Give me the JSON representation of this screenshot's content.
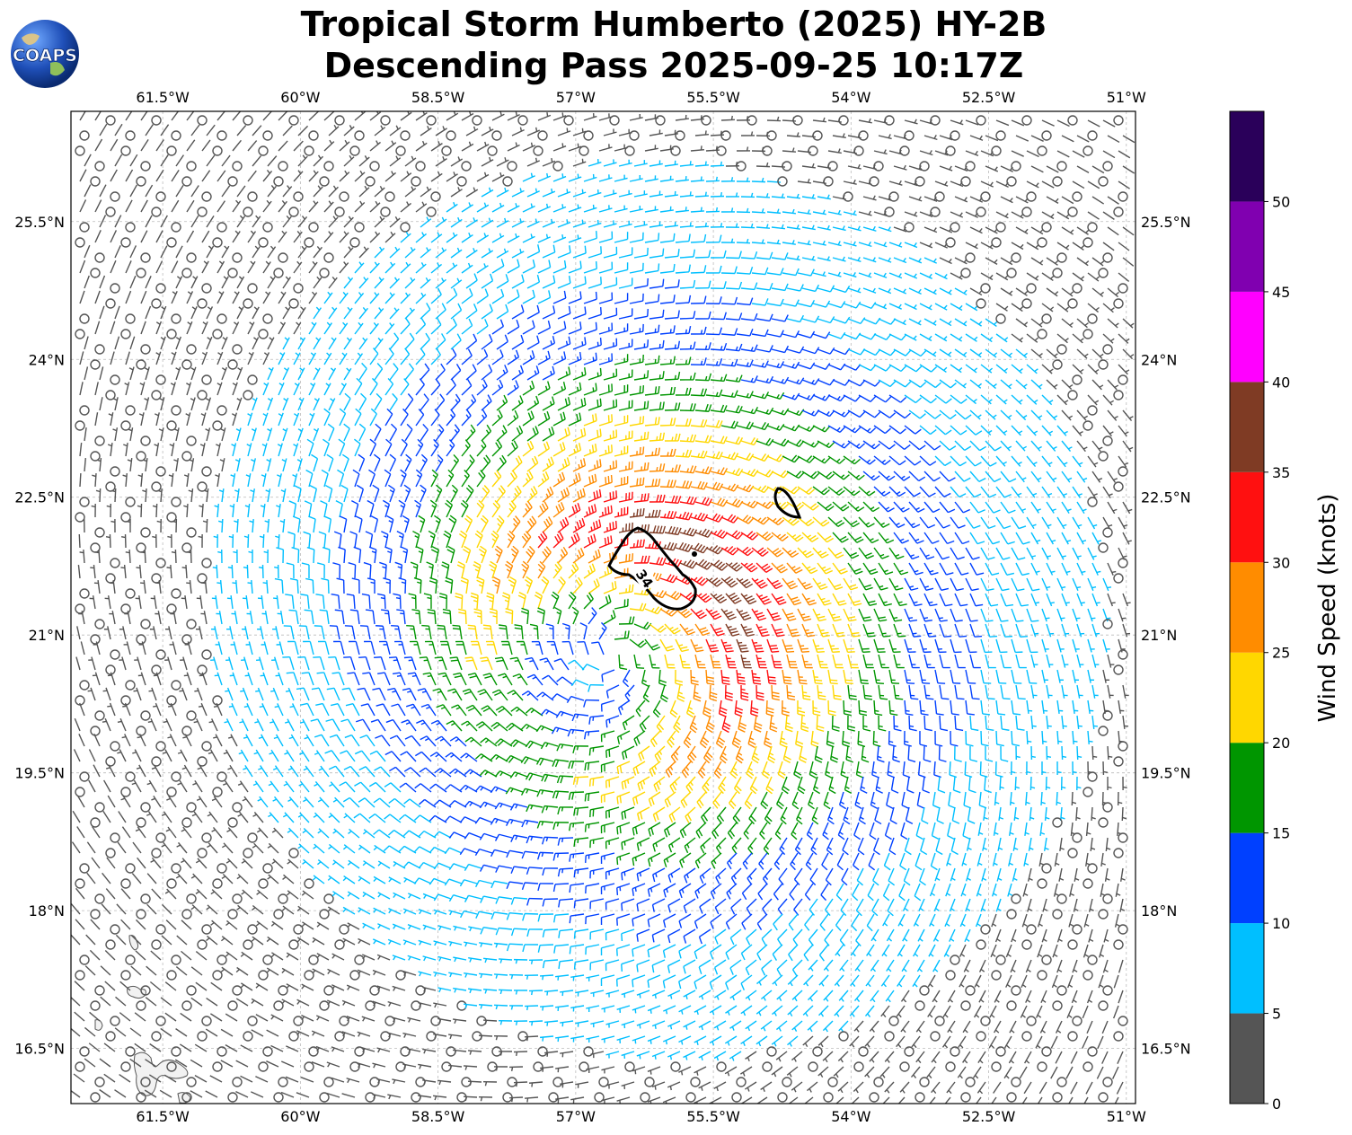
{
  "title": {
    "line1": "Tropical Storm Humberto (2025) HY-2B",
    "line2": "Descending Pass 2025-09-25 10:17Z"
  },
  "logo": {
    "text": "COAPS",
    "icon": "earth-globe-icon"
  },
  "map": {
    "lon_ticks": [
      "61.5°W",
      "60°W",
      "58.5°W",
      "57°W",
      "55.5°W",
      "54°W",
      "52.5°W",
      "51°W"
    ],
    "lat_ticks": [
      "25.5°N",
      "24°N",
      "22.5°N",
      "21°N",
      "19.5°N",
      "18°N",
      "16.5°N"
    ],
    "lon_values": [
      -61.5,
      -60,
      -58.5,
      -57,
      -55.5,
      -54,
      -52.5,
      -51
    ],
    "lat_values": [
      25.5,
      24,
      22.5,
      21,
      19.5,
      18,
      16.5
    ],
    "lon_range": [
      -62.5,
      -50.9
    ],
    "lat_range": [
      15.9,
      26.7
    ],
    "storm_center": {
      "lon": -56.6,
      "lat": 20.8
    },
    "contour_label": "34",
    "grid": true
  },
  "colorbar": {
    "title": "Wind Speed (knots)",
    "tick_labels": [
      "0",
      "5",
      "10",
      "15",
      "20",
      "25",
      "30",
      "35",
      "40",
      "45",
      "50"
    ],
    "bins": [
      {
        "min": 0,
        "max": 5,
        "color": "#555555"
      },
      {
        "min": 5,
        "max": 10,
        "color": "#00bfff"
      },
      {
        "min": 10,
        "max": 15,
        "color": "#0040ff"
      },
      {
        "min": 15,
        "max": 20,
        "color": "#009600"
      },
      {
        "min": 20,
        "max": 25,
        "color": "#ffd700"
      },
      {
        "min": 25,
        "max": 30,
        "color": "#ff8c00"
      },
      {
        "min": 30,
        "max": 35,
        "color": "#ff1010"
      },
      {
        "min": 35,
        "max": 40,
        "color": "#7f3b24"
      },
      {
        "min": 40,
        "max": 45,
        "color": "#ff00ff"
      },
      {
        "min": 45,
        "max": 50,
        "color": "#8000b0"
      },
      {
        "min": 50,
        "max": 55,
        "color": "#2a005a"
      }
    ]
  }
}
